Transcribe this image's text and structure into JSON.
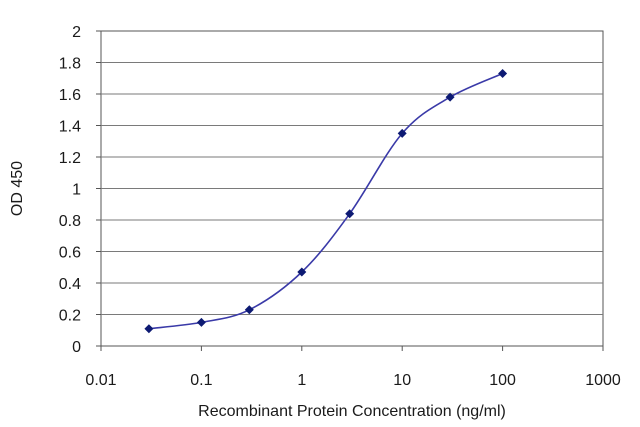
{
  "chart_data": {
    "type": "line",
    "title": "",
    "xlabel": "Recombinant Protein Concentration (ng/ml)",
    "ylabel": "OD 450",
    "x_scale": "log",
    "xlim": [
      0.01,
      1000
    ],
    "ylim": [
      0,
      2
    ],
    "x_ticks": [
      0.01,
      0.1,
      1,
      10,
      100,
      1000
    ],
    "x_tick_labels": [
      "0.01",
      "0.1",
      "1",
      "10",
      "100",
      "1000"
    ],
    "y_ticks": [
      0,
      0.2,
      0.4,
      0.6,
      0.8,
      1,
      1.2,
      1.4,
      1.6,
      1.8,
      2
    ],
    "y_tick_labels": [
      "0",
      "0.2",
      "0.4",
      "0.6",
      "0.8",
      "1",
      "1.2",
      "1.4",
      "1.6",
      "1.8",
      "2"
    ],
    "grid": "horizontal",
    "legend": "none",
    "series": [
      {
        "x": [
          0.03,
          0.1,
          0.3,
          1,
          3,
          10,
          30,
          100
        ],
        "y": [
          0.11,
          0.15,
          0.23,
          0.47,
          0.84,
          1.35,
          1.58,
          1.73
        ],
        "color": "#3a3aa8",
        "marker_color": "#0d1a73"
      }
    ]
  }
}
